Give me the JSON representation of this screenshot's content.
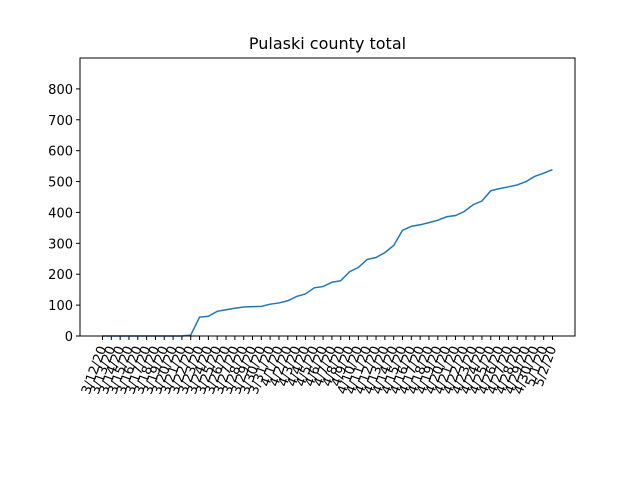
{
  "chart_data": {
    "type": "line",
    "title": "Pulaski county total",
    "categories": [
      "3/12/20",
      "3/13/20",
      "3/14/20",
      "3/15/20",
      "3/16/20",
      "3/17/20",
      "3/18/20",
      "3/19/20",
      "3/20/20",
      "3/21/20",
      "3/22/20",
      "3/23/20",
      "3/24/20",
      "3/25/20",
      "3/26/20",
      "3/27/20",
      "3/28/20",
      "3/29/20",
      "3/30/20",
      "3/31/20",
      "4/1/20",
      "4/2/20",
      "4/3/20",
      "4/4/20",
      "4/5/20",
      "4/6/20",
      "4/7/20",
      "4/8/20",
      "4/9/20",
      "4/10/20",
      "4/11/20",
      "4/12/20",
      "4/13/20",
      "4/14/20",
      "4/15/20",
      "4/16/20",
      "4/17/20",
      "4/18/20",
      "4/19/20",
      "4/20/20",
      "4/21/20",
      "4/22/20",
      "4/23/20",
      "4/24/20",
      "4/25/20",
      "4/26/20",
      "4/27/20",
      "4/28/20",
      "4/29/20",
      "4/30/20",
      "5/1/20",
      "5/2/20"
    ],
    "series": [
      {
        "color": "#1f77b4",
        "values": [
          0,
          0,
          0,
          0,
          0,
          0,
          0,
          0,
          0,
          0,
          3,
          61,
          64,
          80,
          85,
          90,
          94,
          95,
          96,
          103,
          107,
          114,
          128,
          136,
          156,
          160,
          174,
          179,
          208,
          222,
          248,
          254,
          270,
          293,
          342,
          355,
          360,
          367,
          375,
          386,
          390,
          403,
          425,
          437,
          470,
          477,
          483,
          489,
          500,
          517,
          527,
          539
        ]
      }
    ],
    "ylim": [
      0,
      900
    ],
    "yticks": [
      0,
      100,
      200,
      300,
      400,
      500,
      600,
      700,
      800
    ]
  }
}
